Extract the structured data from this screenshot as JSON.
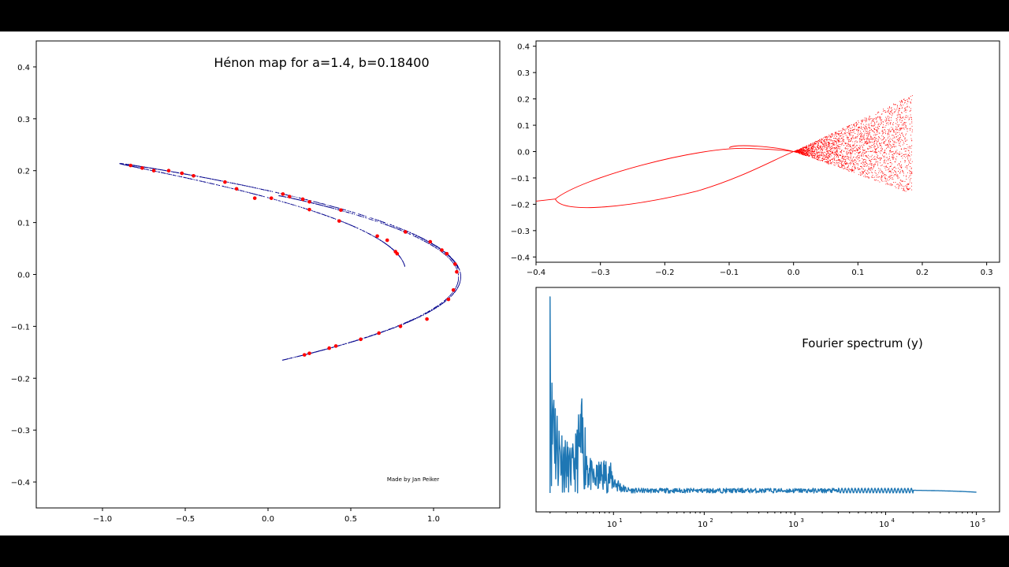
{
  "chart_data": [
    {
      "type": "scatter",
      "title": "Hénon map for a=1.4, b=0.18400",
      "annotation": "Made by Jan Peiker",
      "xlim": [
        -1.4,
        1.4
      ],
      "ylim": [
        -0.45,
        0.45
      ],
      "xticks": [
        -1.0,
        -0.5,
        0.0,
        0.5,
        1.0
      ],
      "xtick_labels": [
        "−1.0",
        "−0.5",
        "0.0",
        "0.5",
        "1.0"
      ],
      "yticks": [
        0.4,
        0.3,
        0.2,
        0.1,
        0.0,
        -0.1,
        -0.2,
        -0.3,
        -0.4
      ],
      "ytick_labels": [
        "0.4",
        "0.3",
        "0.2",
        "0.1",
        "0.0",
        "−0.1",
        "−0.2",
        "−0.3",
        "−0.4"
      ],
      "attractor_color": "#00008b",
      "point_color": "#ff0000",
      "points": [
        [
          -0.83,
          0.21
        ],
        [
          -0.76,
          0.205
        ],
        [
          -0.69,
          0.2
        ],
        [
          -0.6,
          0.2
        ],
        [
          -0.52,
          0.195
        ],
        [
          -0.45,
          0.19
        ],
        [
          -0.26,
          0.178
        ],
        [
          -0.19,
          0.165
        ],
        [
          0.02,
          0.147
        ],
        [
          0.09,
          0.155
        ],
        [
          0.13,
          0.15
        ],
        [
          0.21,
          0.145
        ],
        [
          0.25,
          0.14
        ],
        [
          0.44,
          0.124
        ],
        [
          0.83,
          0.082
        ],
        [
          0.98,
          0.063
        ],
        [
          1.05,
          0.047
        ],
        [
          1.08,
          0.04
        ],
        [
          1.13,
          0.02
        ],
        [
          1.14,
          0.005
        ],
        [
          1.12,
          -0.03
        ],
        [
          1.09,
          -0.048
        ],
        [
          0.96,
          -0.086
        ],
        [
          0.8,
          -0.1
        ],
        [
          0.67,
          -0.113
        ],
        [
          0.56,
          -0.125
        ],
        [
          0.41,
          -0.138
        ],
        [
          0.37,
          -0.142
        ],
        [
          0.25,
          -0.152
        ],
        [
          0.22,
          -0.155
        ],
        [
          -0.08,
          0.147
        ],
        [
          0.25,
          0.125
        ],
        [
          0.43,
          0.103
        ],
        [
          0.66,
          0.074
        ],
        [
          0.72,
          0.066
        ],
        [
          0.78,
          0.04
        ],
        [
          0.77,
          0.044
        ]
      ]
    },
    {
      "type": "scatter",
      "xlim": [
        -0.4,
        0.32
      ],
      "ylim": [
        -0.42,
        0.42
      ],
      "xticks": [
        -0.4,
        -0.3,
        -0.2,
        -0.1,
        0.0,
        0.1,
        0.2,
        0.3
      ],
      "xtick_labels": [
        "−0.4",
        "−0.3",
        "−0.2",
        "−0.1",
        "0.0",
        "0.1",
        "0.2",
        "0.3"
      ],
      "yticks": [
        0.4,
        0.3,
        0.2,
        0.1,
        0.0,
        -0.1,
        -0.2,
        -0.3,
        -0.4
      ],
      "ytick_labels": [
        "0.4",
        "0.3",
        "0.2",
        "0.1",
        "0.0",
        "−0.1",
        "−0.2",
        "−0.3",
        "−0.4"
      ],
      "color": "#ff0000"
    },
    {
      "type": "line",
      "title": "Fourier spectrum (y)",
      "x_scale": "log",
      "xlim": [
        1.4,
        180000
      ],
      "xticks": [
        10,
        100,
        1000,
        10000,
        100000
      ],
      "xtick_labels": [
        [
          "10",
          "1"
        ],
        [
          "10",
          "2"
        ],
        [
          "10",
          "3"
        ],
        [
          "10",
          "4"
        ],
        [
          "10",
          "5"
        ]
      ],
      "color": "#1f77b4"
    }
  ]
}
